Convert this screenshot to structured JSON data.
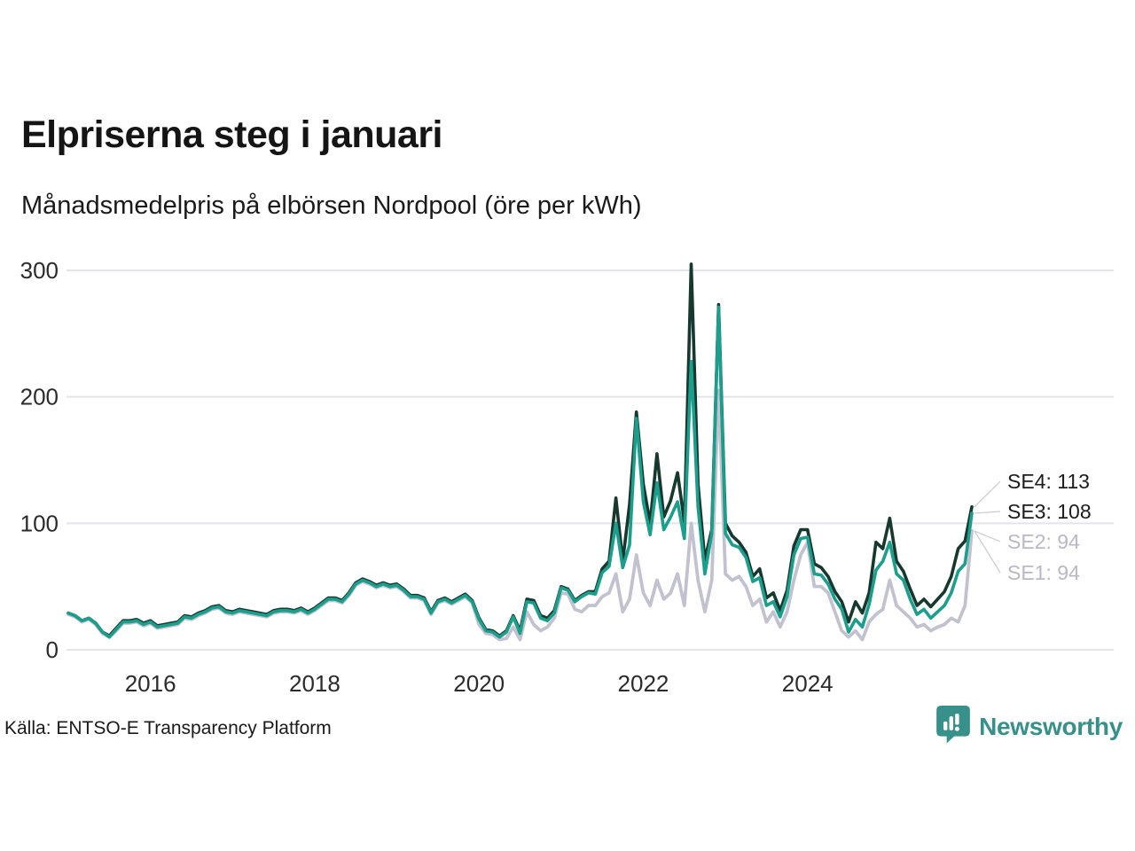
{
  "header": {
    "title": "Elpriserna steg i januari",
    "subtitle": "Månadsmedelpris på elbörsen Nordpool (öre per kWh)"
  },
  "footer": {
    "source": "Källa: ENTSO-E Transparency Platform",
    "brand": "Newsworthy"
  },
  "colors": {
    "background": "#ffffff",
    "title_text": "#151515",
    "axis_text": "#2b2b2b",
    "gridline": "#e4e4e9",
    "leader_line": "#c9c9d2",
    "brand_teal": "#37918a",
    "dark_label_text": "#1c1c1c",
    "gray_label_text": "#b9b8c6"
  },
  "chart_data": {
    "type": "line",
    "title": "Elpriserna steg i januari",
    "subtitle": "Månadsmedelpris på elbörsen Nordpool (öre per kWh)",
    "unit": "öre per kWh",
    "freq": "monthly",
    "start": "2015-01",
    "end": "2026-01",
    "grid": true,
    "ylim": [
      0,
      310
    ],
    "y_ticks": [
      0,
      100,
      200,
      300
    ],
    "x_ticks": [
      {
        "label": "2016",
        "i": 12
      },
      {
        "label": "2018",
        "i": 36
      },
      {
        "label": "2020",
        "i": 60
      },
      {
        "label": "2022",
        "i": 84
      },
      {
        "label": "2024",
        "i": 108
      }
    ],
    "draw_order": [
      "SE1",
      "SE2",
      "SE4",
      "SE3"
    ],
    "series": [
      {
        "name": "SE1",
        "color": "#cdccd8",
        "label_color": "#b9b8c6",
        "end_label": "SE1: 94",
        "end_value": 94,
        "values": [
          28,
          26,
          22,
          24,
          20,
          13,
          10,
          15,
          21,
          21,
          22,
          19,
          21,
          17,
          18,
          19,
          20,
          25,
          24,
          27,
          29,
          32,
          33,
          29,
          28,
          30,
          29,
          28,
          27,
          26,
          29,
          30,
          30,
          29,
          31,
          28,
          31,
          35,
          39,
          39,
          37,
          43,
          51,
          54,
          52,
          49,
          51,
          49,
          50,
          46,
          41,
          41,
          39,
          28,
          37,
          39,
          36,
          39,
          42,
          37,
          20,
          13,
          12,
          8,
          9,
          18,
          8,
          30,
          20,
          15,
          18,
          25,
          45,
          44,
          32,
          30,
          35,
          35,
          42,
          45,
          60,
          30,
          40,
          75,
          45,
          35,
          55,
          40,
          45,
          60,
          35,
          100,
          55,
          30,
          55,
          205,
          60,
          55,
          58,
          50,
          35,
          40,
          22,
          30,
          18,
          30,
          55,
          75,
          85,
          50,
          50,
          45,
          30,
          15,
          10,
          15,
          8,
          22,
          28,
          32,
          55,
          35,
          30,
          25,
          18,
          20,
          15,
          18,
          20,
          25,
          22,
          35,
          94
        ]
      },
      {
        "name": "SE2",
        "color": "#c2c1cf",
        "label_color": "#b9b8c6",
        "end_label": "SE2: 94",
        "end_value": 94,
        "values": [
          28,
          26,
          22,
          24,
          20,
          13,
          10,
          15,
          21,
          21,
          22,
          19,
          21,
          17,
          18,
          19,
          20,
          25,
          24,
          27,
          29,
          32,
          33,
          29,
          28,
          30,
          29,
          28,
          27,
          26,
          29,
          30,
          30,
          29,
          31,
          28,
          31,
          35,
          39,
          39,
          37,
          43,
          51,
          54,
          52,
          49,
          51,
          49,
          50,
          46,
          41,
          41,
          39,
          28,
          37,
          39,
          36,
          39,
          42,
          37,
          20,
          13,
          12,
          8,
          9,
          18,
          8,
          30,
          20,
          15,
          18,
          25,
          45,
          44,
          32,
          30,
          35,
          35,
          42,
          45,
          60,
          30,
          40,
          75,
          45,
          35,
          55,
          40,
          45,
          60,
          35,
          100,
          55,
          30,
          55,
          205,
          60,
          55,
          58,
          50,
          35,
          40,
          22,
          30,
          18,
          30,
          55,
          75,
          85,
          50,
          50,
          45,
          30,
          15,
          10,
          15,
          8,
          22,
          28,
          32,
          55,
          35,
          30,
          25,
          18,
          20,
          15,
          18,
          20,
          25,
          22,
          35,
          94
        ]
      },
      {
        "name": "SE3",
        "color": "#1b9e8b",
        "label_color": "#1c1c1c",
        "end_label": "SE3: 108",
        "end_value": 108,
        "values": [
          29,
          27,
          23,
          25,
          21,
          14,
          10,
          16,
          22,
          22,
          23,
          20,
          22,
          18,
          19,
          20,
          21,
          26,
          25,
          28,
          30,
          33,
          34,
          30,
          29,
          31,
          30,
          29,
          28,
          27,
          30,
          31,
          31,
          30,
          32,
          29,
          32,
          36,
          40,
          40,
          38,
          44,
          52,
          55,
          53,
          50,
          52,
          50,
          51,
          47,
          42,
          42,
          40,
          29,
          38,
          40,
          37,
          40,
          43,
          38,
          24,
          15,
          14,
          10,
          14,
          26,
          13,
          38,
          37,
          25,
          23,
          29,
          49,
          47,
          38,
          42,
          45,
          44,
          61,
          66,
          100,
          65,
          83,
          183,
          117,
          91,
          132,
          95,
          105,
          117,
          88,
          228,
          113,
          60,
          92,
          271,
          92,
          83,
          81,
          73,
          54,
          57,
          35,
          38,
          26,
          42,
          75,
          88,
          89,
          60,
          59,
          52,
          40,
          32,
          14,
          24,
          18,
          36,
          63,
          70,
          85,
          60,
          55,
          40,
          28,
          32,
          25,
          30,
          35,
          45,
          62,
          68,
          108
        ]
      },
      {
        "name": "SE4",
        "color": "#17382e",
        "label_color": "#1c1c1c",
        "end_label": "SE4: 113",
        "end_value": 113,
        "values": [
          29,
          27,
          23,
          25,
          21,
          14,
          11,
          17,
          23,
          23,
          24,
          21,
          23,
          19,
          20,
          21,
          22,
          27,
          26,
          29,
          31,
          34,
          35,
          31,
          30,
          32,
          31,
          30,
          29,
          28,
          31,
          32,
          32,
          31,
          33,
          30,
          33,
          37,
          41,
          41,
          39,
          45,
          53,
          56,
          54,
          51,
          53,
          51,
          52,
          48,
          43,
          43,
          41,
          30,
          39,
          41,
          38,
          41,
          44,
          39,
          25,
          16,
          15,
          11,
          15,
          27,
          15,
          40,
          39,
          27,
          25,
          31,
          50,
          48,
          39,
          43,
          46,
          46,
          64,
          70,
          120,
          70,
          115,
          188,
          131,
          100,
          155,
          105,
          118,
          140,
          101,
          305,
          131,
          71,
          95,
          273,
          100,
          90,
          85,
          77,
          58,
          64,
          41,
          45,
          31,
          47,
          82,
          95,
          95,
          68,
          65,
          58,
          46,
          38,
          22,
          38,
          29,
          45,
          85,
          80,
          104,
          70,
          62,
          48,
          35,
          40,
          34,
          40,
          46,
          58,
          80,
          86,
          113
        ]
      }
    ]
  }
}
